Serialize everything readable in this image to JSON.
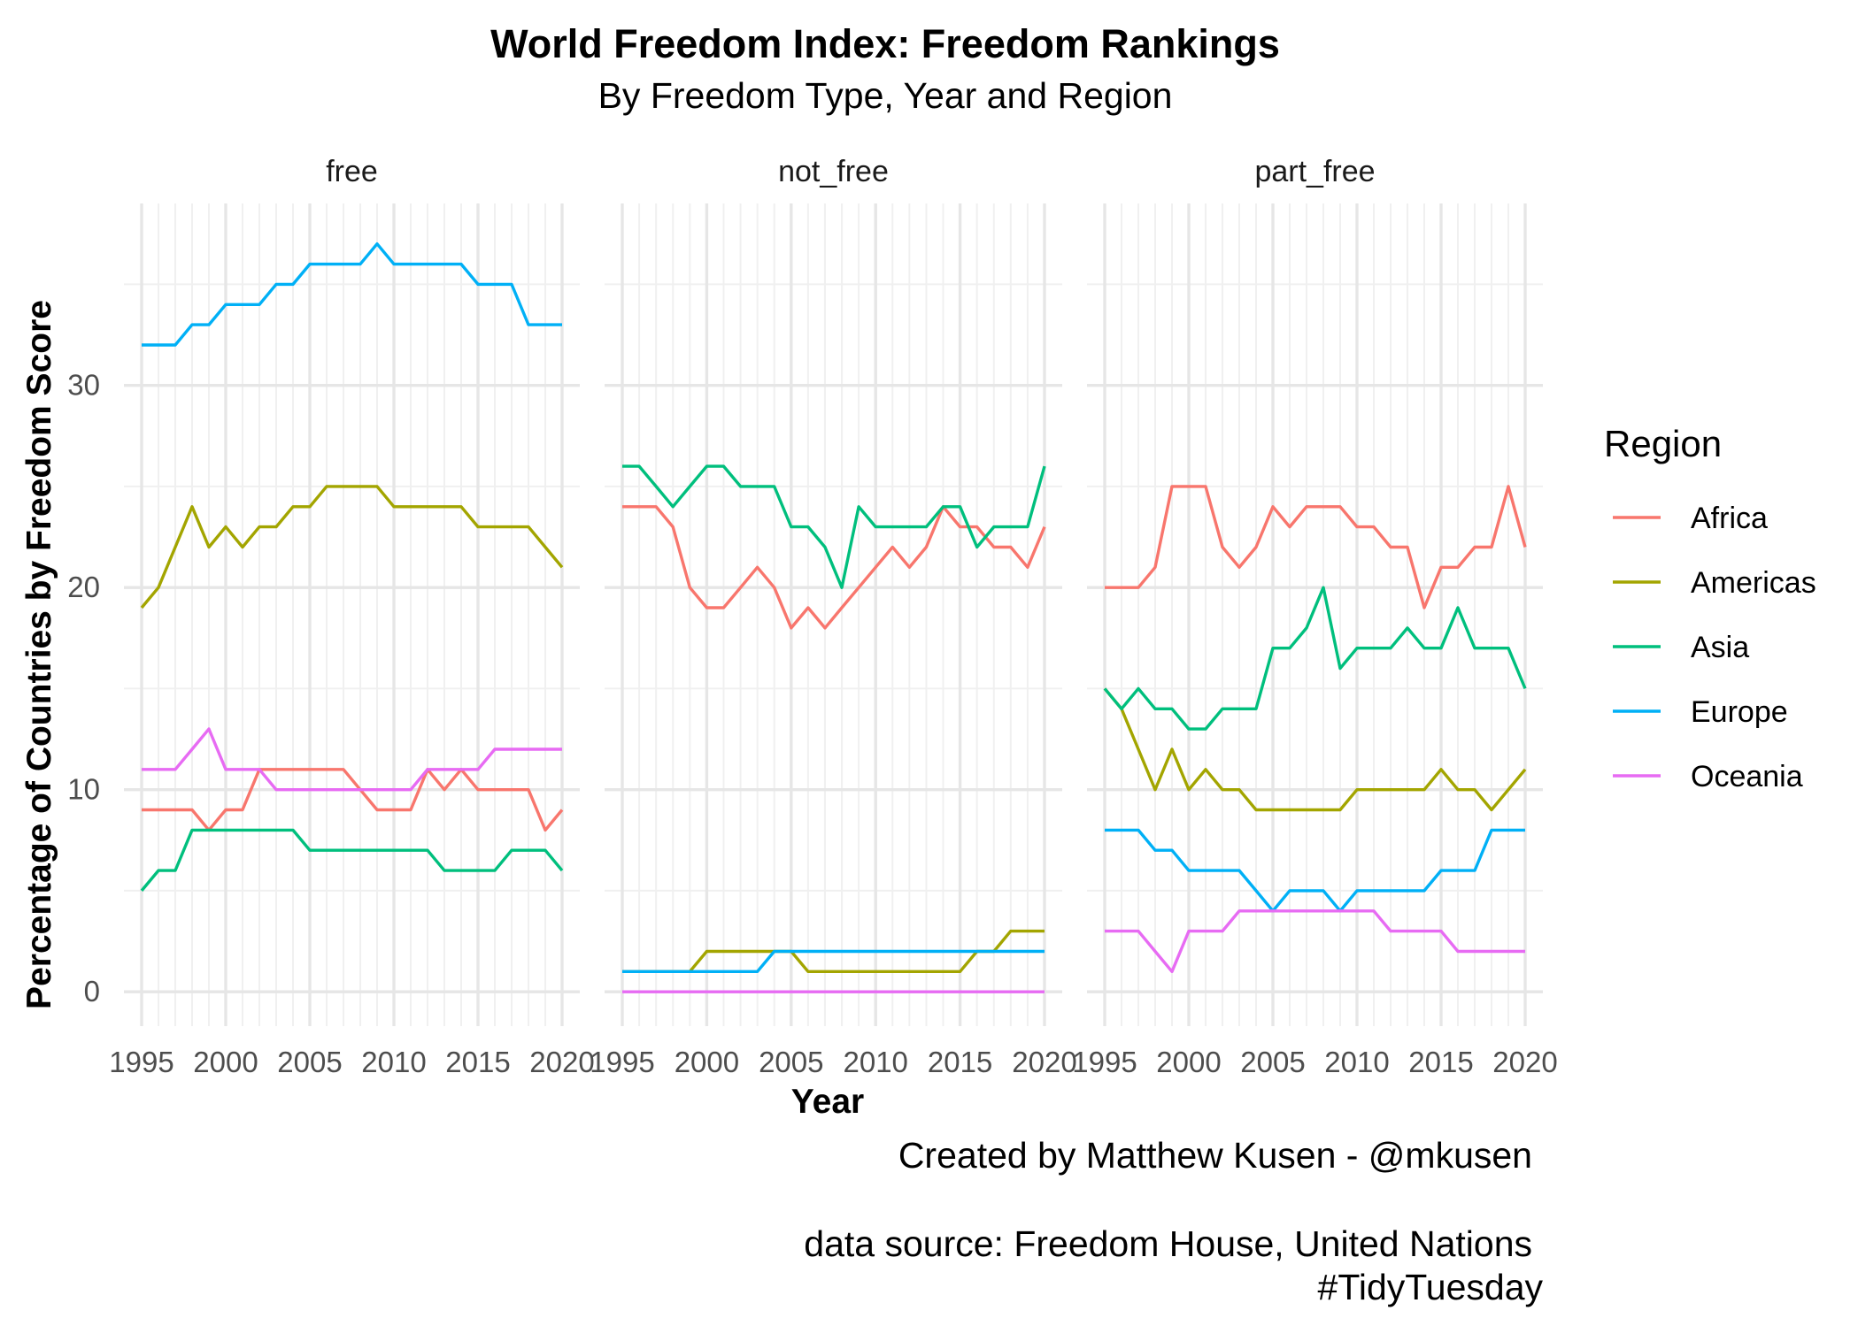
{
  "chart_data": {
    "type": "line",
    "title": "World Freedom Index: Freedom Rankings",
    "subtitle": "By Freedom Type, Year and Region",
    "xlabel": "Year",
    "ylabel": "Percentage of Countries by Freedom Score",
    "xlim": [
      1995,
      2020
    ],
    "ylim": [
      -1.7,
      39
    ],
    "x_ticks": [
      1995,
      2000,
      2005,
      2010,
      2015,
      2020
    ],
    "y_ticks": [
      0,
      10,
      20,
      30
    ],
    "grid": true,
    "legend_title": "Region",
    "legend_position": "right",
    "caption": [
      "Created by Matthew Kusen - @mkusen",
      "",
      "data source: Freedom House, United Nations",
      "#TidyTuesday"
    ],
    "x": [
      1995,
      1996,
      1997,
      1998,
      1999,
      2000,
      2001,
      2002,
      2003,
      2004,
      2005,
      2006,
      2007,
      2008,
      2009,
      2010,
      2011,
      2012,
      2013,
      2014,
      2015,
      2016,
      2017,
      2018,
      2019,
      2020
    ],
    "facets": [
      {
        "name": "free",
        "series": [
          {
            "name": "Africa",
            "color": "#F8766D",
            "values": [
              9,
              9,
              9,
              9,
              8,
              9,
              9,
              11,
              11,
              11,
              11,
              11,
              11,
              10,
              9,
              9,
              9,
              11,
              10,
              11,
              10,
              10,
              10,
              10,
              8,
              9
            ]
          },
          {
            "name": "Americas",
            "color": "#A3A500",
            "values": [
              19,
              20,
              22,
              24,
              22,
              23,
              22,
              23,
              23,
              24,
              24,
              25,
              25,
              25,
              25,
              24,
              24,
              24,
              24,
              24,
              23,
              23,
              23,
              23,
              22,
              21
            ]
          },
          {
            "name": "Asia",
            "color": "#00BF7D",
            "values": [
              5,
              6,
              6,
              8,
              8,
              8,
              8,
              8,
              8,
              8,
              7,
              7,
              7,
              7,
              7,
              7,
              7,
              7,
              6,
              6,
              6,
              6,
              7,
              7,
              7,
              6
            ]
          },
          {
            "name": "Europe",
            "color": "#00B0F6",
            "values": [
              32,
              32,
              32,
              33,
              33,
              34,
              34,
              34,
              35,
              35,
              36,
              36,
              36,
              36,
              37,
              36,
              36,
              36,
              36,
              36,
              35,
              35,
              35,
              33,
              33,
              33
            ]
          },
          {
            "name": "Oceania",
            "color": "#E76BF3",
            "values": [
              11,
              11,
              11,
              12,
              13,
              11,
              11,
              11,
              10,
              10,
              10,
              10,
              10,
              10,
              10,
              10,
              10,
              11,
              11,
              11,
              11,
              12,
              12,
              12,
              12,
              12
            ]
          }
        ]
      },
      {
        "name": "not_free",
        "series": [
          {
            "name": "Africa",
            "color": "#F8766D",
            "values": [
              24,
              24,
              24,
              23,
              20,
              19,
              19,
              20,
              21,
              20,
              18,
              19,
              18,
              19,
              20,
              21,
              22,
              21,
              22,
              24,
              23,
              23,
              22,
              22,
              21,
              23
            ]
          },
          {
            "name": "Americas",
            "color": "#A3A500",
            "values": [
              1,
              1,
              1,
              1,
              1,
              2,
              2,
              2,
              2,
              2,
              2,
              1,
              1,
              1,
              1,
              1,
              1,
              1,
              1,
              1,
              1,
              2,
              2,
              3,
              3,
              3
            ]
          },
          {
            "name": "Asia",
            "color": "#00BF7D",
            "values": [
              26,
              26,
              25,
              24,
              25,
              26,
              26,
              25,
              25,
              25,
              23,
              23,
              22,
              20,
              24,
              23,
              23,
              23,
              23,
              24,
              24,
              22,
              23,
              23,
              23,
              26
            ]
          },
          {
            "name": "Europe",
            "color": "#00B0F6",
            "values": [
              1,
              1,
              1,
              1,
              1,
              1,
              1,
              1,
              1,
              2,
              2,
              2,
              2,
              2,
              2,
              2,
              2,
              2,
              2,
              2,
              2,
              2,
              2,
              2,
              2,
              2
            ]
          },
          {
            "name": "Oceania",
            "color": "#E76BF3",
            "values": [
              0,
              0,
              0,
              0,
              0,
              0,
              0,
              0,
              0,
              0,
              0,
              0,
              0,
              0,
              0,
              0,
              0,
              0,
              0,
              0,
              0,
              0,
              0,
              0,
              0,
              0
            ]
          }
        ]
      },
      {
        "name": "part_free",
        "series": [
          {
            "name": "Africa",
            "color": "#F8766D",
            "values": [
              20,
              20,
              20,
              21,
              25,
              25,
              25,
              22,
              21,
              22,
              24,
              23,
              24,
              24,
              24,
              23,
              23,
              22,
              22,
              19,
              21,
              21,
              22,
              22,
              25,
              22
            ]
          },
          {
            "name": "Americas",
            "color": "#A3A500",
            "values": [
              15,
              14,
              12,
              10,
              12,
              10,
              11,
              10,
              10,
              9,
              9,
              9,
              9,
              9,
              9,
              10,
              10,
              10,
              10,
              10,
              11,
              10,
              10,
              9,
              10,
              11
            ]
          },
          {
            "name": "Asia",
            "color": "#00BF7D",
            "values": [
              15,
              14,
              15,
              14,
              14,
              13,
              13,
              14,
              14,
              14,
              17,
              17,
              18,
              20,
              16,
              17,
              17,
              17,
              18,
              17,
              17,
              19,
              17,
              17,
              17,
              15
            ]
          },
          {
            "name": "Europe",
            "color": "#00B0F6",
            "values": [
              8,
              8,
              8,
              7,
              7,
              6,
              6,
              6,
              6,
              5,
              4,
              5,
              5,
              5,
              4,
              5,
              5,
              5,
              5,
              5,
              6,
              6,
              6,
              8,
              8,
              8
            ]
          },
          {
            "name": "Oceania",
            "color": "#E76BF3",
            "values": [
              3,
              3,
              3,
              2,
              1,
              3,
              3,
              3,
              4,
              4,
              4,
              4,
              4,
              4,
              4,
              4,
              4,
              3,
              3,
              3,
              3,
              2,
              2,
              2,
              2,
              2
            ]
          }
        ]
      }
    ]
  }
}
